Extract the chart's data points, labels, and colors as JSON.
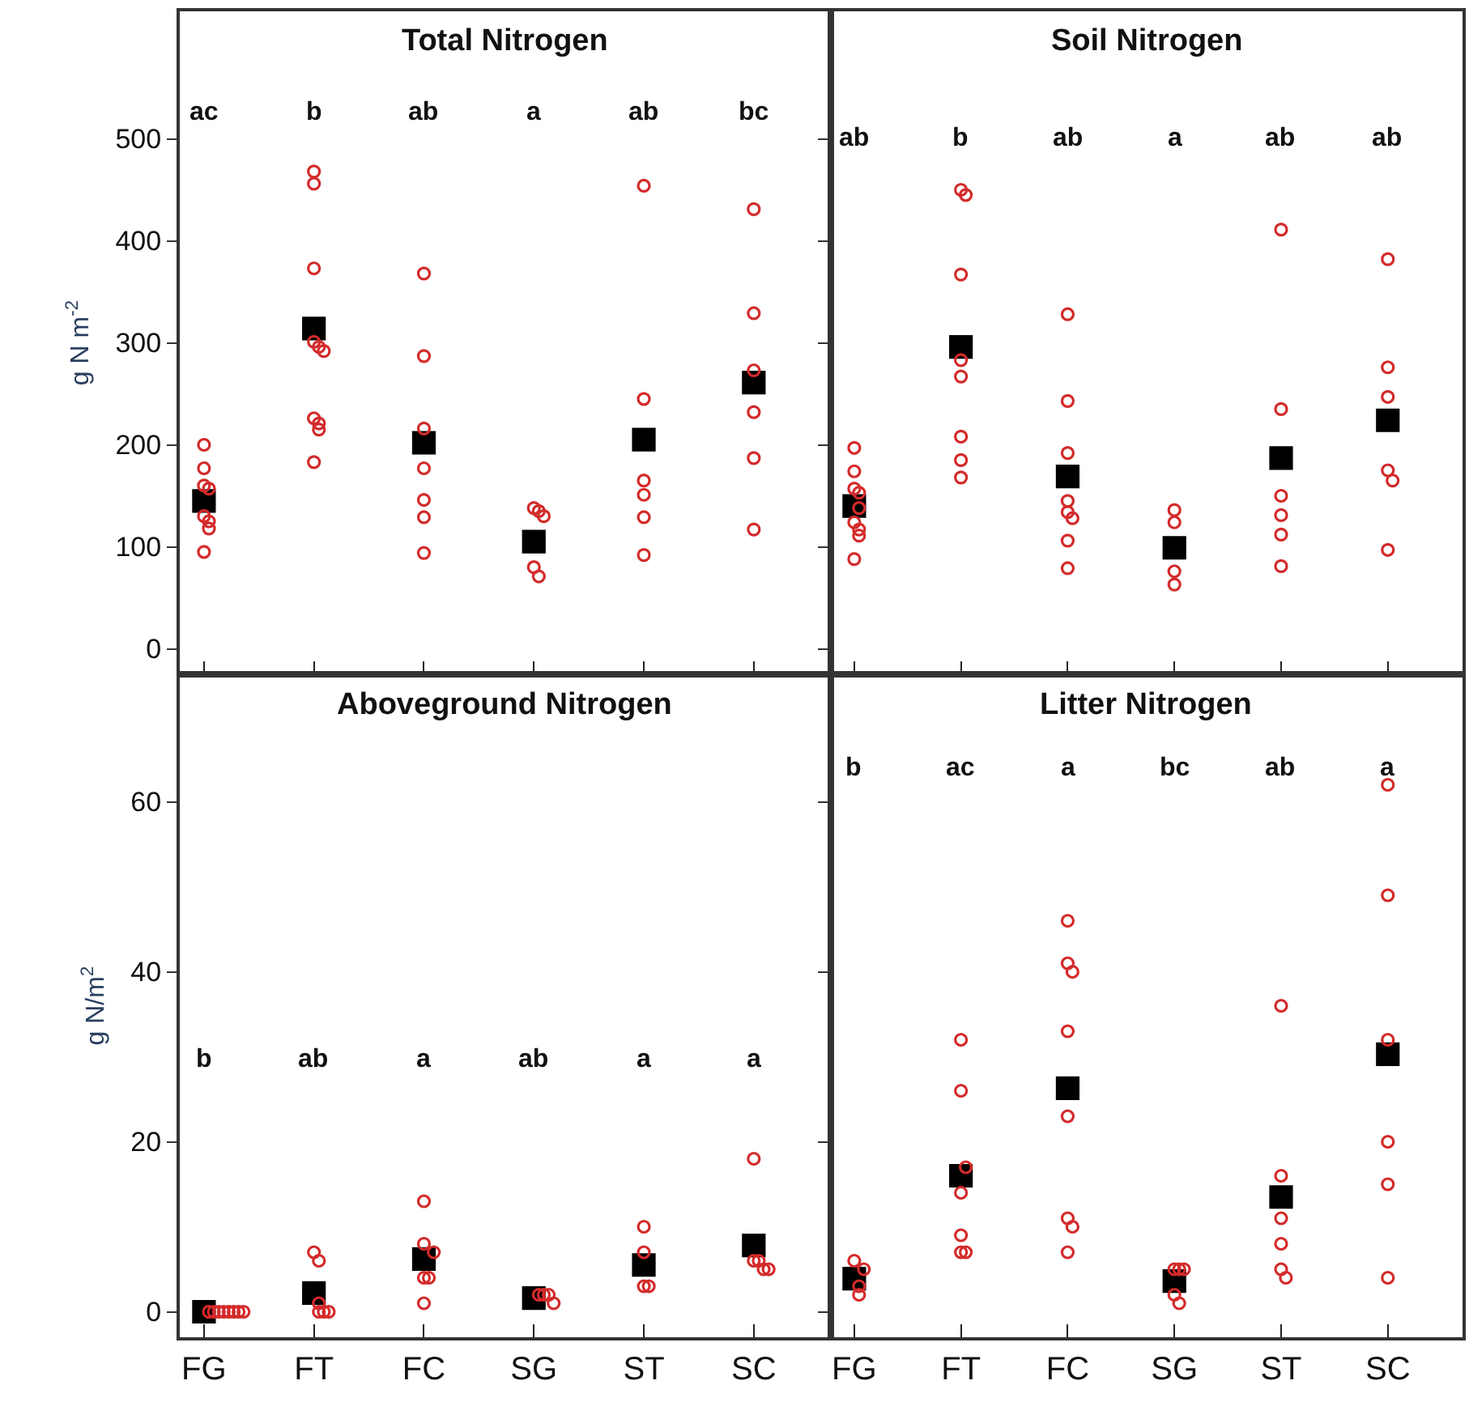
{
  "chart_data": [
    {
      "type": "scatter",
      "title": "Total Nitrogen",
      "ylabel": "g N m$^{-2}$",
      "categories": [
        "FG",
        "FT",
        "FC",
        "SG",
        "ST",
        "SC"
      ],
      "ylim": [
        -25,
        625
      ],
      "yticks": [
        0,
        100,
        200,
        300,
        400,
        500
      ],
      "tick_labels": "y",
      "grid": false,
      "series": [
        {
          "color": "#d42a2a",
          "marker": "circle",
          "x": [
            "FG",
            "FG",
            "FG",
            "FG",
            "FG",
            "FG",
            "FG",
            "FG",
            "FT",
            "FT",
            "FT",
            "FT",
            "FT",
            "FT",
            "FT",
            "FT",
            "FT",
            "FT",
            "FC",
            "FC",
            "FC",
            "FC",
            "FC",
            "FC",
            "FC",
            "SG",
            "SG",
            "SG",
            "SG",
            "SG",
            "ST",
            "ST",
            "ST",
            "ST",
            "ST",
            "ST",
            "SC",
            "SC",
            "SC",
            "SC",
            "SC",
            "SC"
          ],
          "values": [
            200,
            177,
            160,
            157,
            130,
            125,
            118,
            95,
            468,
            456,
            373,
            301,
            296,
            292,
            226,
            221,
            215,
            183,
            368,
            287,
            216,
            177,
            146,
            129,
            94,
            138,
            135,
            130,
            80,
            71,
            454,
            245,
            165,
            151,
            129,
            92,
            431,
            329,
            273,
            232,
            187,
            117
          ]
        },
        {
          "color": "#000000",
          "marker": "square",
          "values": [
            145,
            314,
            202,
            105,
            205,
            261
          ]
        }
      ],
      "annotations": [
        "ac",
        "b",
        "ab",
        "a",
        "ab",
        "bc"
      ]
    },
    {
      "type": "scatter",
      "title": "Soil Nitrogen",
      "categories": [
        "FG",
        "FT",
        "FC",
        "SG",
        "ST",
        "SC"
      ],
      "ylim": [
        -25,
        625
      ],
      "yticks": [
        0,
        100,
        200,
        300,
        400,
        500
      ],
      "tick_labels": false,
      "grid": false,
      "series": [
        {
          "color": "#d42a2a",
          "marker": "circle",
          "x": [
            "FG",
            "FG",
            "FG",
            "FG",
            "FG",
            "FG",
            "FG",
            "FG",
            "FG",
            "FT",
            "FT",
            "FT",
            "FT",
            "FT",
            "FT",
            "FT",
            "FT",
            "FC",
            "FC",
            "FC",
            "FC",
            "FC",
            "FC",
            "FC",
            "FC",
            "SG",
            "SG",
            "SG",
            "SG",
            "ST",
            "ST",
            "ST",
            "ST",
            "ST",
            "ST",
            "SC",
            "SC",
            "SC",
            "SC",
            "SC",
            "SC"
          ],
          "values": [
            197,
            174,
            157,
            153,
            138,
            124,
            117,
            111,
            88,
            450,
            445,
            367,
            283,
            267,
            208,
            185,
            168,
            328,
            243,
            192,
            145,
            134,
            128,
            106,
            79,
            136,
            124,
            76,
            63,
            411,
            235,
            150,
            131,
            112,
            81,
            382,
            276,
            247,
            175,
            165,
            97
          ]
        },
        {
          "color": "#000000",
          "marker": "square",
          "values": [
            140,
            296,
            169,
            99,
            187,
            224
          ]
        }
      ],
      "annotations": [
        "ab",
        "b",
        "ab",
        "a",
        "ab",
        "ab"
      ]
    },
    {
      "type": "scatter",
      "title": "Aboveground Nitrogen",
      "ylabel": "g N/m$^{2}$",
      "categories": [
        "FG",
        "FT",
        "FC",
        "SG",
        "ST",
        "SC"
      ],
      "ylim": [
        -3,
        75
      ],
      "yticks": [
        0,
        20,
        40,
        60
      ],
      "grid": false,
      "series": [
        {
          "color": "#d42a2a",
          "marker": "circle",
          "x": [
            "FG",
            "FG",
            "FG",
            "FG",
            "FG",
            "FG",
            "FG",
            "FG",
            "FT",
            "FT",
            "FT",
            "FT",
            "FT",
            "FT",
            "FC",
            "FC",
            "FC",
            "FC",
            "FC",
            "FC",
            "SG",
            "SG",
            "SG",
            "SG",
            "ST",
            "ST",
            "ST",
            "ST",
            "SC",
            "SC",
            "SC",
            "SC",
            "SC"
          ],
          "values": [
            0,
            0,
            0,
            0,
            0,
            0,
            0,
            0,
            7,
            6,
            1,
            0,
            0,
            0,
            13,
            8,
            7,
            4,
            4,
            1,
            2,
            2,
            2,
            1,
            10,
            7,
            3,
            3,
            18,
            6,
            6,
            5,
            5
          ]
        },
        {
          "color": "#000000",
          "marker": "square",
          "values": [
            0,
            2.2,
            6.2,
            1.6,
            5.5,
            7.8
          ]
        }
      ],
      "annotations": [
        "b",
        "ab",
        "a",
        "ab",
        "a",
        "a"
      ]
    },
    {
      "type": "scatter",
      "title": "Litter Nitrogen",
      "categories": [
        "FG",
        "FT",
        "FC",
        "SG",
        "ST",
        "SC"
      ],
      "ylim": [
        -3,
        75
      ],
      "yticks": [
        0,
        20,
        40,
        60
      ],
      "tick_labels": "x",
      "grid": false,
      "series": [
        {
          "color": "#d42a2a",
          "marker": "circle",
          "x": [
            "FG",
            "FG",
            "FG",
            "FG",
            "FT",
            "FT",
            "FT",
            "FT",
            "FT",
            "FT",
            "FT",
            "FC",
            "FC",
            "FC",
            "FC",
            "FC",
            "FC",
            "FC",
            "FC",
            "SG",
            "SG",
            "SG",
            "SG",
            "SG",
            "ST",
            "ST",
            "ST",
            "ST",
            "ST",
            "ST",
            "SC",
            "SC",
            "SC",
            "SC",
            "SC",
            "SC"
          ],
          "values": [
            6,
            5,
            3,
            2,
            32,
            26,
            17,
            14,
            9,
            7,
            7,
            46,
            41,
            40,
            33,
            23,
            11,
            10,
            7,
            5,
            5,
            5,
            2,
            1,
            36,
            16,
            11,
            8,
            5,
            4,
            62,
            49,
            32,
            20,
            15,
            4
          ]
        },
        {
          "color": "#000000",
          "marker": "square",
          "values": [
            3.9,
            16,
            26.3,
            3.6,
            13.5,
            30.3
          ]
        }
      ],
      "annotations": [
        "b",
        "ac",
        "a",
        "bc",
        "ab",
        "a"
      ]
    }
  ]
}
